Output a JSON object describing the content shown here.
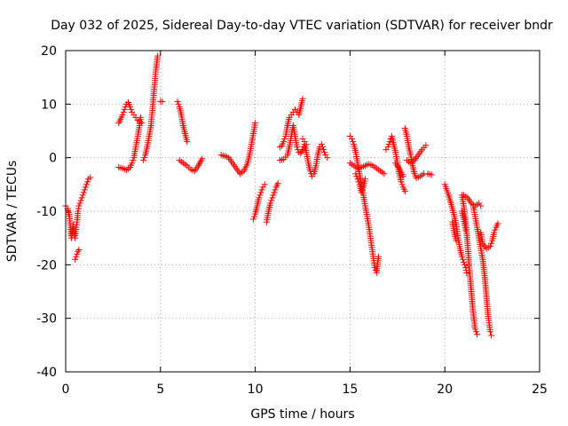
{
  "chart_data": {
    "type": "scatter",
    "title": "Day 032 of 2025, Sidereal Day-to-day VTEC variation (SDTVAR) for receiver bndr",
    "xlabel": "GPS time / hours",
    "ylabel": "SDTVAR / TECUs",
    "xlim": [
      0,
      25
    ],
    "ylim": [
      -40,
      20
    ],
    "xticks": [
      0,
      5,
      10,
      15,
      20,
      25
    ],
    "yticks": [
      -40,
      -30,
      -20,
      -10,
      0,
      10,
      20
    ],
    "grid": true,
    "legend": "none",
    "marker": "plus",
    "color": "#ff0000",
    "series": [
      {
        "segments": [
          [
            [
              0.0,
              -9
            ],
            [
              0.1,
              -9.5
            ],
            [
              0.2,
              -11
            ],
            [
              0.25,
              -13
            ],
            [
              0.3,
              -15
            ],
            [
              0.35,
              -14
            ],
            [
              0.4,
              -12.5
            ],
            [
              0.45,
              -14.5
            ],
            [
              0.5,
              -15
            ],
            [
              0.55,
              -13
            ],
            [
              0.6,
              -12
            ],
            [
              0.65,
              -10
            ],
            [
              0.7,
              -9
            ],
            [
              0.8,
              -8
            ],
            [
              0.9,
              -7
            ],
            [
              1.0,
              -6
            ],
            [
              1.1,
              -5
            ],
            [
              1.2,
              -4
            ],
            [
              1.3,
              -3.7
            ]
          ],
          [
            [
              0.5,
              -19
            ],
            [
              0.55,
              -18.5
            ],
            [
              0.6,
              -18
            ],
            [
              0.65,
              -17.5
            ],
            [
              0.7,
              -17.2
            ]
          ],
          [
            [
              2.8,
              -1.8
            ],
            [
              3.0,
              -2.0
            ],
            [
              3.2,
              -2.3
            ],
            [
              3.4,
              -1.8
            ],
            [
              3.5,
              -1.0
            ],
            [
              3.6,
              0.0
            ],
            [
              3.7,
              2.0
            ],
            [
              3.8,
              4.0
            ],
            [
              3.9,
              6.0
            ],
            [
              3.95,
              7.5
            ]
          ],
          [
            [
              2.8,
              6.5
            ],
            [
              2.9,
              7.2
            ],
            [
              3.0,
              8.0
            ],
            [
              3.1,
              9.0
            ],
            [
              3.2,
              10.0
            ],
            [
              3.3,
              10.3
            ],
            [
              3.4,
              9.5
            ],
            [
              3.5,
              8.5
            ],
            [
              3.6,
              8.0
            ],
            [
              3.7,
              7.5
            ],
            [
              3.8,
              7.0
            ],
            [
              3.9,
              6.8
            ],
            [
              4.0,
              6.5
            ]
          ],
          [
            [
              4.1,
              -0.5
            ],
            [
              4.2,
              0.5
            ],
            [
              4.3,
              2.0
            ],
            [
              4.4,
              4.0
            ],
            [
              4.5,
              6.0
            ],
            [
              4.55,
              8.0
            ],
            [
              4.6,
              10.0
            ],
            [
              4.65,
              12.0
            ],
            [
              4.7,
              14.0
            ],
            [
              4.75,
              16.0
            ],
            [
              4.8,
              17.5
            ],
            [
              4.85,
              19.0
            ]
          ],
          [
            [
              5.0,
              10.5
            ],
            [
              5.1,
              10.5
            ]
          ],
          [
            [
              5.9,
              10.5
            ],
            [
              6.0,
              9.5
            ],
            [
              6.1,
              8.0
            ],
            [
              6.2,
              6.0
            ],
            [
              6.3,
              4.5
            ],
            [
              6.4,
              3.0
            ]
          ],
          [
            [
              6.0,
              -0.5
            ],
            [
              6.2,
              -1.0
            ],
            [
              6.4,
              -1.5
            ],
            [
              6.6,
              -2.2
            ],
            [
              6.8,
              -2.5
            ],
            [
              7.0,
              -1.5
            ],
            [
              7.2,
              -0.2
            ]
          ],
          [
            [
              8.2,
              0.5
            ],
            [
              8.4,
              0.3
            ],
            [
              8.6,
              0.0
            ],
            [
              8.8,
              -1.0
            ],
            [
              9.0,
              -2.0
            ],
            [
              9.2,
              -3.0
            ],
            [
              9.4,
              -2.5
            ],
            [
              9.6,
              -1.0
            ],
            [
              9.7,
              0.5
            ],
            [
              9.8,
              2.5
            ],
            [
              9.9,
              4.5
            ],
            [
              10.0,
              6.5
            ]
          ],
          [
            [
              9.9,
              -11.5
            ],
            [
              10.0,
              -10.5
            ],
            [
              10.1,
              -9.0
            ],
            [
              10.2,
              -7.5
            ],
            [
              10.3,
              -6.5
            ],
            [
              10.4,
              -5.5
            ],
            [
              10.5,
              -5.0
            ]
          ],
          [
            [
              10.6,
              -12.0
            ],
            [
              10.7,
              -10.0
            ],
            [
              10.8,
              -8.5
            ],
            [
              10.9,
              -7.5
            ],
            [
              11.0,
              -6.5
            ],
            [
              11.1,
              -5.5
            ],
            [
              11.2,
              -4.8
            ]
          ],
          [
            [
              11.3,
              2.0
            ],
            [
              11.4,
              2.2
            ],
            [
              11.5,
              3.0
            ],
            [
              11.6,
              4.0
            ],
            [
              11.7,
              6.0
            ],
            [
              11.8,
              7.5
            ],
            [
              11.9,
              8.0
            ],
            [
              12.0,
              8.5
            ],
            [
              12.1,
              9.0
            ],
            [
              12.2,
              8.5
            ],
            [
              12.3,
              8.0
            ],
            [
              12.4,
              9.5
            ],
            [
              12.5,
              11.0
            ]
          ],
          [
            [
              11.3,
              -0.5
            ],
            [
              11.5,
              -0.3
            ],
            [
              11.7,
              0.5
            ],
            [
              11.8,
              2.0
            ],
            [
              11.9,
              4.0
            ],
            [
              12.0,
              6.0
            ],
            [
              12.1,
              4.0
            ],
            [
              12.2,
              2.0
            ],
            [
              12.3,
              1.0
            ],
            [
              12.4,
              0.8
            ],
            [
              12.5,
              1.5
            ],
            [
              12.6,
              2.5
            ],
            [
              12.7,
              1.0
            ],
            [
              12.8,
              -1.0
            ],
            [
              12.9,
              -2.5
            ],
            [
              13.0,
              -3.5
            ],
            [
              13.1,
              -3.0
            ],
            [
              13.2,
              -1.5
            ],
            [
              13.3,
              0.5
            ],
            [
              13.4,
              2.0
            ],
            [
              13.5,
              2.5
            ],
            [
              13.6,
              1.5
            ],
            [
              13.7,
              0.5
            ],
            [
              13.8,
              0.0
            ]
          ],
          [
            [
              12.5,
              3.5
            ],
            [
              12.6,
              3.0
            ],
            [
              12.7,
              2.5
            ]
          ],
          [
            [
              15.0,
              -1.0
            ],
            [
              15.2,
              -1.5
            ],
            [
              15.4,
              -2.0
            ],
            [
              15.6,
              -1.8
            ],
            [
              15.8,
              -1.5
            ],
            [
              16.0,
              -1.2
            ],
            [
              16.2,
              -1.5
            ],
            [
              16.4,
              -2.0
            ],
            [
              16.6,
              -2.5
            ],
            [
              16.8,
              -3.0
            ]
          ],
          [
            [
              15.0,
              4.0
            ],
            [
              15.1,
              3.5
            ],
            [
              15.2,
              2.5
            ],
            [
              15.3,
              1.0
            ],
            [
              15.4,
              -1.0
            ],
            [
              15.5,
              -3.0
            ],
            [
              15.6,
              -5.0
            ],
            [
              15.7,
              -7.0
            ],
            [
              15.8,
              -9.0
            ],
            [
              15.9,
              -11.0
            ],
            [
              16.0,
              -13.0
            ],
            [
              16.1,
              -15.5
            ],
            [
              16.2,
              -18.0
            ],
            [
              16.3,
              -20.5
            ],
            [
              16.4,
              -21.5
            ],
            [
              16.5,
              -18.5
            ]
          ],
          [
            [
              15.3,
              -3.0
            ],
            [
              15.4,
              -4.0
            ],
            [
              15.5,
              -5.0
            ],
            [
              15.6,
              -6.5
            ],
            [
              15.7,
              -5.5
            ],
            [
              15.8,
              -4.0
            ]
          ],
          [
            [
              16.9,
              1.5
            ],
            [
              17.0,
              2.0
            ],
            [
              17.1,
              3.0
            ],
            [
              17.2,
              4.0
            ],
            [
              17.3,
              2.5
            ],
            [
              17.4,
              1.0
            ],
            [
              17.5,
              -1.0
            ],
            [
              17.6,
              -3.0
            ],
            [
              17.7,
              -4.5
            ],
            [
              17.8,
              -5.5
            ],
            [
              17.9,
              -6.3
            ]
          ],
          [
            [
              17.4,
              -1.0
            ],
            [
              17.6,
              -2.0
            ],
            [
              17.8,
              -3.5
            ]
          ],
          [
            [
              17.9,
              5.5
            ],
            [
              18.0,
              4.0
            ],
            [
              18.1,
              2.0
            ],
            [
              18.2,
              0.5
            ],
            [
              18.3,
              -1.5
            ],
            [
              18.4,
              -3.0
            ],
            [
              18.5,
              -3.8
            ],
            [
              18.7,
              -3.5
            ],
            [
              18.9,
              -3.0
            ],
            [
              19.1,
              -3.0
            ],
            [
              19.3,
              -3.2
            ]
          ],
          [
            [
              18.0,
              -0.5
            ],
            [
              18.2,
              -1.0
            ],
            [
              18.4,
              -0.5
            ],
            [
              18.6,
              0.5
            ],
            [
              18.8,
              1.5
            ],
            [
              19.0,
              2.3
            ]
          ],
          [
            [
              20.0,
              -5.0
            ],
            [
              20.2,
              -7.0
            ],
            [
              20.4,
              -9.5
            ],
            [
              20.6,
              -12.5
            ],
            [
              20.7,
              -15.0
            ],
            [
              20.8,
              -17.0
            ],
            [
              20.9,
              -18.5
            ],
            [
              21.0,
              -19.5
            ],
            [
              21.1,
              -20.5
            ],
            [
              21.15,
              -21.5
            ]
          ],
          [
            [
              20.4,
              -12.0
            ],
            [
              20.5,
              -14.0
            ],
            [
              20.6,
              -15.5
            ]
          ],
          [
            [
              20.9,
              -7.0
            ],
            [
              21.0,
              -9.0
            ],
            [
              21.1,
              -12.0
            ],
            [
              21.2,
              -16.0
            ],
            [
              21.3,
              -21.0
            ],
            [
              21.4,
              -25.0
            ],
            [
              21.5,
              -29.0
            ],
            [
              21.6,
              -32.0
            ],
            [
              21.7,
              -33.0
            ]
          ],
          [
            [
              20.9,
              -10.0
            ],
            [
              21.0,
              -11.5
            ],
            [
              21.1,
              -13.5
            ]
          ],
          [
            [
              21.0,
              -7.0
            ],
            [
              21.2,
              -7.5
            ],
            [
              21.4,
              -8.5
            ],
            [
              21.6,
              -9.0
            ],
            [
              21.8,
              -8.5
            ],
            [
              21.9,
              -9.0
            ]
          ],
          [
            [
              21.5,
              -9.0
            ],
            [
              21.6,
              -11.0
            ],
            [
              21.7,
              -13.0
            ],
            [
              21.8,
              -15.0
            ],
            [
              21.9,
              -17.0
            ],
            [
              22.0,
              -19.0
            ],
            [
              22.1,
              -22.0
            ],
            [
              22.2,
              -26.0
            ],
            [
              22.3,
              -30.0
            ],
            [
              22.4,
              -32.5
            ],
            [
              22.45,
              -33.2
            ]
          ],
          [
            [
              21.9,
              -14.0
            ],
            [
              22.0,
              -16.0
            ],
            [
              22.2,
              -17.0
            ],
            [
              22.4,
              -16.5
            ],
            [
              22.5,
              -15.5
            ],
            [
              22.6,
              -14.0
            ],
            [
              22.7,
              -13.0
            ],
            [
              22.8,
              -12.3
            ]
          ]
        ]
      }
    ]
  }
}
